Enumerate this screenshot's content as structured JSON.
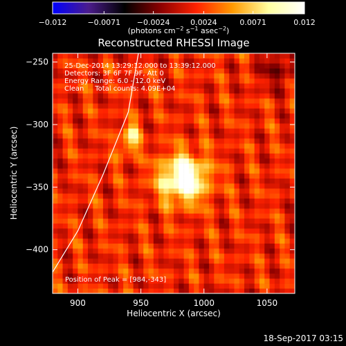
{
  "chart_data": {
    "type": "heatmap",
    "title": "Reconstructed RHESSI Image",
    "xlabel": "Heliocentric X (arcsec)",
    "ylabel": "Heliocentric Y (arcsec)",
    "xlim": [
      880,
      1072
    ],
    "ylim": [
      -435,
      -243
    ],
    "x_ticks": [
      900,
      950,
      1000,
      1050
    ],
    "x_tick_labels": [
      "900",
      "950",
      "1000",
      "1050"
    ],
    "y_ticks": [
      -250,
      -300,
      -350,
      -400
    ],
    "y_tick_labels": [
      "−250",
      "−300",
      "−350",
      "−400"
    ],
    "colorbar": {
      "range": [
        -0.012,
        0.012
      ],
      "ticks": [
        -0.012,
        -0.0071,
        -0.0024,
        0.0024,
        0.0071,
        0.012
      ],
      "tick_labels": [
        "−0.012",
        "−0.0071",
        "−0.0024",
        "0.0024",
        "0.0071",
        "0.012"
      ],
      "unit_label_prefix": "(photons cm",
      "unit_label_sup1": "−2",
      "unit_label_mid": " s",
      "unit_label_sup2": "−1",
      "unit_label_mid2": " asec",
      "unit_label_sup3": "−2",
      "unit_label_suffix": ")",
      "colormap": [
        "#0000ff",
        "#4b1c8c",
        "#000000",
        "#8b0000",
        "#ff2200",
        "#ff9a00",
        "#ffffa0",
        "#ffffff"
      ]
    },
    "info_lines": [
      "25-Dec-2014 13:29:12.000 to 13:39:12.000",
      "Detectors: 3F 6F 7F 9F, Att 0",
      "Energy Range: 6.0 - 12.0 keV",
      "Clean     Total counts: 4.09E+04"
    ],
    "peak_label": "Position of Peak = [984,-343]",
    "peak": {
      "x": 984,
      "y": -343,
      "value": 0.012
    },
    "secondary_sources": [
      {
        "x": 942,
        "y": -306,
        "value": 0.0065
      },
      {
        "x": 940,
        "y": -318,
        "value": 0.0055
      }
    ],
    "limb_arc": [
      [
        880,
        -418
      ],
      [
        900,
        -385
      ],
      [
        920,
        -340
      ],
      [
        940,
        -290
      ],
      [
        948,
        -243
      ]
    ],
    "footer": "18-Sep-2017 03:15"
  }
}
